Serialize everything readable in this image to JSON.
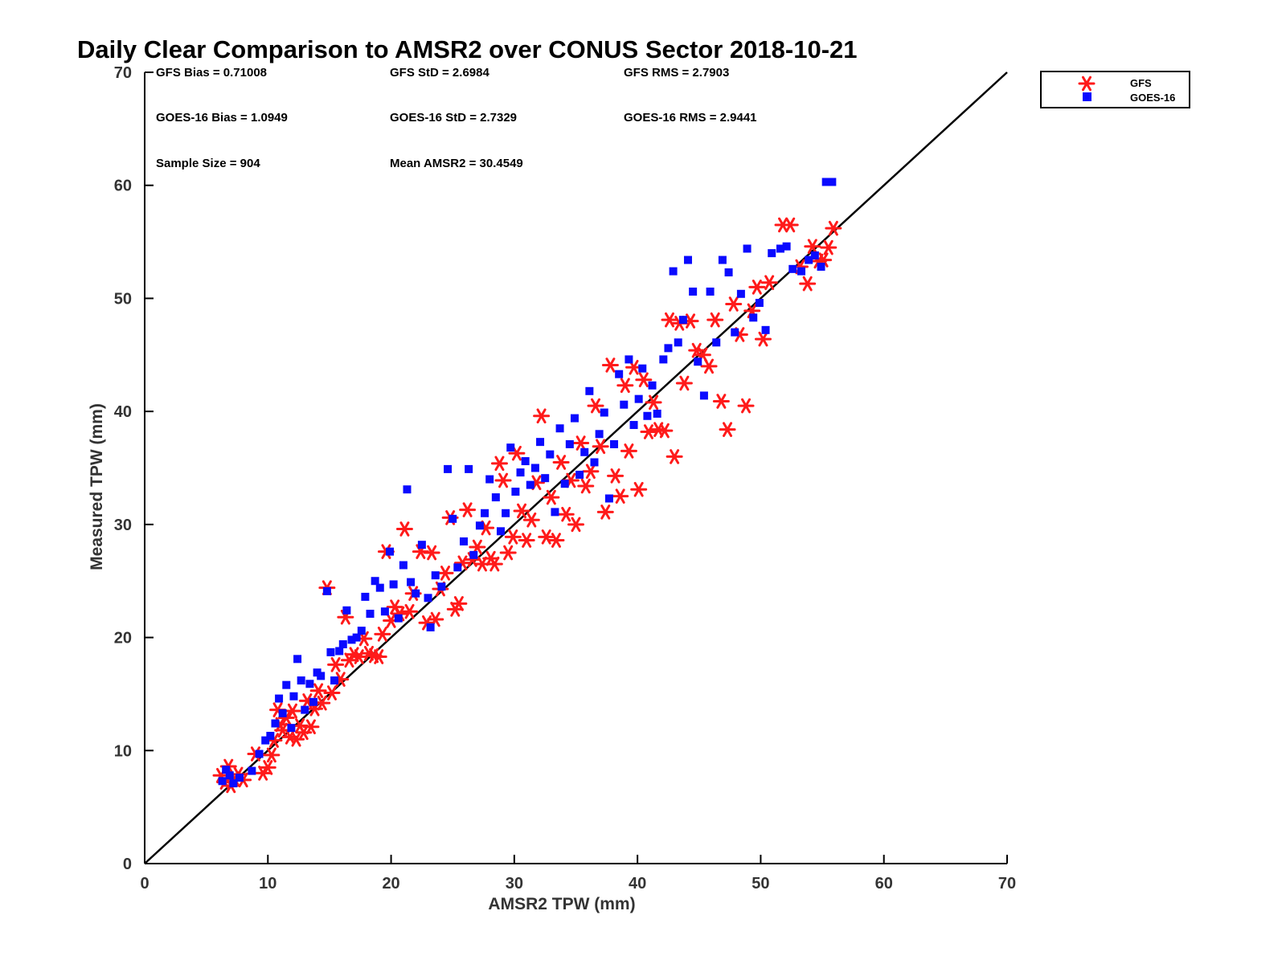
{
  "chart_data": {
    "type": "scatter",
    "title": "Daily Clear Comparison to AMSR2 over CONUS Sector 2018-10-21",
    "xlabel": "AMSR2 TPW (mm)",
    "ylabel": "Measured TPW (mm)",
    "xlim": [
      0,
      70
    ],
    "ylim": [
      0,
      70
    ],
    "xticks": [
      0,
      10,
      20,
      30,
      40,
      50,
      60,
      70
    ],
    "yticks": [
      0,
      10,
      20,
      30,
      40,
      50,
      60,
      70
    ],
    "grid": false,
    "legend_position": "outside top-right",
    "reference_line": {
      "name": "1:1 line",
      "from": [
        0,
        0
      ],
      "to": [
        70,
        70
      ],
      "color": "#000000"
    },
    "stats": [
      [
        "GFS Bias = 0.71008",
        "GFS StD = 2.6984",
        "GFS RMS = 2.7903"
      ],
      [
        "GOES-16 Bias = 1.0949",
        "GOES-16 StD = 2.7329",
        "GOES-16 RMS = 2.9441"
      ],
      [
        "Sample Size = 904",
        "Mean AMSR2 = 30.4549",
        ""
      ]
    ],
    "series": [
      {
        "name": "GFS",
        "marker": "asterisk",
        "color": "#ff1a1a",
        "points": [
          [
            6.2,
            7.8
          ],
          [
            6.5,
            7.2
          ],
          [
            6.8,
            8.6
          ],
          [
            7.0,
            6.9
          ],
          [
            7.3,
            7.5
          ],
          [
            7.6,
            7.9
          ],
          [
            8.0,
            7.4
          ],
          [
            9.0,
            9.7
          ],
          [
            9.6,
            8.0
          ],
          [
            10.0,
            8.5
          ],
          [
            10.3,
            9.6
          ],
          [
            10.5,
            10.9
          ],
          [
            10.8,
            13.6
          ],
          [
            11.0,
            12.3
          ],
          [
            11.2,
            11.8
          ],
          [
            11.5,
            12.9
          ],
          [
            11.8,
            11.2
          ],
          [
            12.0,
            13.5
          ],
          [
            12.3,
            11.0
          ],
          [
            12.6,
            12.2
          ],
          [
            12.9,
            11.6
          ],
          [
            13.2,
            14.4
          ],
          [
            13.5,
            12.1
          ],
          [
            13.8,
            13.7
          ],
          [
            14.1,
            15.3
          ],
          [
            14.4,
            14.2
          ],
          [
            14.8,
            24.4
          ],
          [
            15.2,
            15.1
          ],
          [
            15.5,
            17.6
          ],
          [
            15.9,
            16.3
          ],
          [
            16.3,
            21.8
          ],
          [
            16.6,
            18.0
          ],
          [
            17.0,
            18.5
          ],
          [
            17.4,
            18.3
          ],
          [
            17.8,
            19.9
          ],
          [
            18.2,
            18.6
          ],
          [
            18.6,
            18.4
          ],
          [
            19.0,
            18.3
          ],
          [
            19.3,
            20.3
          ],
          [
            19.6,
            27.6
          ],
          [
            20.0,
            21.5
          ],
          [
            20.3,
            22.7
          ],
          [
            20.7,
            22.1
          ],
          [
            21.1,
            29.6
          ],
          [
            21.5,
            22.3
          ],
          [
            21.8,
            23.9
          ],
          [
            22.4,
            27.6
          ],
          [
            22.9,
            21.3
          ],
          [
            23.3,
            27.5
          ],
          [
            23.6,
            21.6
          ],
          [
            24.0,
            24.3
          ],
          [
            24.4,
            25.7
          ],
          [
            24.8,
            30.6
          ],
          [
            25.2,
            22.5
          ],
          [
            25.5,
            23.0
          ],
          [
            25.8,
            26.6
          ],
          [
            26.2,
            31.3
          ],
          [
            26.6,
            26.9
          ],
          [
            27.0,
            28.0
          ],
          [
            27.4,
            26.5
          ],
          [
            27.7,
            29.7
          ],
          [
            28.1,
            27.0
          ],
          [
            28.4,
            26.5
          ],
          [
            28.8,
            35.4
          ],
          [
            29.1,
            33.9
          ],
          [
            29.5,
            27.5
          ],
          [
            29.9,
            28.9
          ],
          [
            30.2,
            36.3
          ],
          [
            30.6,
            31.2
          ],
          [
            31.0,
            28.6
          ],
          [
            31.4,
            30.4
          ],
          [
            31.8,
            33.7
          ],
          [
            32.2,
            39.6
          ],
          [
            32.6,
            28.9
          ],
          [
            33.0,
            32.4
          ],
          [
            33.4,
            28.6
          ],
          [
            33.8,
            35.5
          ],
          [
            34.2,
            30.9
          ],
          [
            34.6,
            33.9
          ],
          [
            35.0,
            30.0
          ],
          [
            35.4,
            37.2
          ],
          [
            35.8,
            33.4
          ],
          [
            36.2,
            34.7
          ],
          [
            36.6,
            40.5
          ],
          [
            37.0,
            36.9
          ],
          [
            37.4,
            31.1
          ],
          [
            37.8,
            44.1
          ],
          [
            38.2,
            34.3
          ],
          [
            38.6,
            32.5
          ],
          [
            39.0,
            42.3
          ],
          [
            39.3,
            36.5
          ],
          [
            39.7,
            43.9
          ],
          [
            40.1,
            33.1
          ],
          [
            40.5,
            42.8
          ],
          [
            40.9,
            38.2
          ],
          [
            41.3,
            40.8
          ],
          [
            41.7,
            38.4
          ],
          [
            42.2,
            38.3
          ],
          [
            42.6,
            48.1
          ],
          [
            43.0,
            36.0
          ],
          [
            43.4,
            47.8
          ],
          [
            43.8,
            42.5
          ],
          [
            44.3,
            48.0
          ],
          [
            44.8,
            45.4
          ],
          [
            45.3,
            45.0
          ],
          [
            45.8,
            44.0
          ],
          [
            46.3,
            48.1
          ],
          [
            46.8,
            40.9
          ],
          [
            47.3,
            38.4
          ],
          [
            47.8,
            49.5
          ],
          [
            48.3,
            46.8
          ],
          [
            48.8,
            40.5
          ],
          [
            49.3,
            48.9
          ],
          [
            49.7,
            51.0
          ],
          [
            50.2,
            46.4
          ],
          [
            50.7,
            51.4
          ],
          [
            51.8,
            56.5
          ],
          [
            52.4,
            56.5
          ],
          [
            53.2,
            52.8
          ],
          [
            53.8,
            51.3
          ],
          [
            54.2,
            54.6
          ],
          [
            54.7,
            53.3
          ],
          [
            55.1,
            53.4
          ],
          [
            55.5,
            54.5
          ],
          [
            55.9,
            56.2
          ]
        ]
      },
      {
        "name": "GOES-16",
        "marker": "square",
        "color": "#0a0aff",
        "points": [
          [
            6.3,
            7.3
          ],
          [
            6.6,
            8.3
          ],
          [
            6.9,
            7.8
          ],
          [
            7.2,
            7.1
          ],
          [
            7.7,
            7.6
          ],
          [
            8.7,
            8.2
          ],
          [
            9.3,
            9.7
          ],
          [
            9.8,
            10.9
          ],
          [
            10.2,
            11.3
          ],
          [
            10.6,
            12.4
          ],
          [
            10.9,
            14.6
          ],
          [
            11.2,
            13.3
          ],
          [
            11.5,
            15.8
          ],
          [
            11.9,
            12.0
          ],
          [
            12.1,
            14.8
          ],
          [
            12.4,
            18.1
          ],
          [
            12.7,
            16.2
          ],
          [
            13.0,
            13.6
          ],
          [
            13.4,
            15.9
          ],
          [
            13.7,
            14.3
          ],
          [
            14.0,
            16.9
          ],
          [
            14.3,
            16.6
          ],
          [
            14.8,
            24.1
          ],
          [
            15.1,
            18.7
          ],
          [
            15.4,
            16.2
          ],
          [
            15.8,
            18.8
          ],
          [
            16.1,
            19.4
          ],
          [
            16.4,
            22.4
          ],
          [
            16.8,
            19.8
          ],
          [
            17.2,
            20.0
          ],
          [
            17.6,
            20.6
          ],
          [
            17.9,
            23.6
          ],
          [
            18.3,
            22.1
          ],
          [
            18.7,
            25.0
          ],
          [
            19.1,
            24.4
          ],
          [
            19.5,
            22.3
          ],
          [
            19.9,
            27.6
          ],
          [
            20.2,
            24.7
          ],
          [
            20.6,
            21.7
          ],
          [
            21.0,
            26.4
          ],
          [
            21.3,
            33.1
          ],
          [
            21.6,
            24.9
          ],
          [
            22.0,
            23.9
          ],
          [
            22.5,
            28.2
          ],
          [
            23.0,
            23.5
          ],
          [
            23.2,
            20.9
          ],
          [
            23.6,
            25.5
          ],
          [
            24.1,
            24.5
          ],
          [
            24.6,
            34.9
          ],
          [
            25.0,
            30.5
          ],
          [
            25.4,
            26.2
          ],
          [
            25.9,
            28.5
          ],
          [
            26.3,
            34.9
          ],
          [
            26.7,
            27.3
          ],
          [
            27.2,
            29.9
          ],
          [
            27.6,
            31.0
          ],
          [
            28.0,
            34.0
          ],
          [
            28.5,
            32.4
          ],
          [
            28.9,
            29.4
          ],
          [
            29.3,
            31.0
          ],
          [
            29.7,
            36.8
          ],
          [
            30.1,
            32.9
          ],
          [
            30.5,
            34.6
          ],
          [
            30.9,
            35.6
          ],
          [
            31.3,
            33.5
          ],
          [
            31.7,
            35.0
          ],
          [
            32.1,
            37.3
          ],
          [
            32.5,
            34.1
          ],
          [
            32.9,
            36.2
          ],
          [
            33.3,
            31.1
          ],
          [
            33.7,
            38.5
          ],
          [
            34.1,
            33.6
          ],
          [
            34.5,
            37.1
          ],
          [
            34.9,
            39.4
          ],
          [
            35.3,
            34.4
          ],
          [
            35.7,
            36.4
          ],
          [
            36.1,
            41.8
          ],
          [
            36.5,
            35.5
          ],
          [
            36.9,
            38.0
          ],
          [
            37.3,
            39.9
          ],
          [
            37.7,
            32.3
          ],
          [
            38.1,
            37.1
          ],
          [
            38.5,
            43.3
          ],
          [
            38.9,
            40.6
          ],
          [
            39.3,
            44.6
          ],
          [
            39.7,
            38.8
          ],
          [
            40.1,
            41.1
          ],
          [
            40.4,
            43.8
          ],
          [
            40.8,
            39.6
          ],
          [
            41.2,
            42.3
          ],
          [
            41.6,
            39.8
          ],
          [
            42.1,
            44.6
          ],
          [
            42.5,
            45.6
          ],
          [
            42.9,
            52.4
          ],
          [
            43.3,
            46.1
          ],
          [
            43.7,
            48.1
          ],
          [
            44.1,
            53.4
          ],
          [
            44.5,
            50.6
          ],
          [
            44.9,
            44.4
          ],
          [
            45.4,
            41.4
          ],
          [
            45.9,
            50.6
          ],
          [
            46.4,
            46.1
          ],
          [
            46.9,
            53.4
          ],
          [
            47.4,
            52.3
          ],
          [
            47.9,
            47.0
          ],
          [
            48.4,
            50.4
          ],
          [
            48.9,
            54.4
          ],
          [
            49.4,
            48.3
          ],
          [
            49.9,
            49.6
          ],
          [
            50.4,
            47.2
          ],
          [
            50.9,
            54.0
          ],
          [
            51.6,
            54.4
          ],
          [
            52.1,
            54.6
          ],
          [
            52.6,
            52.6
          ],
          [
            53.3,
            52.4
          ],
          [
            53.9,
            53.4
          ],
          [
            54.4,
            53.8
          ],
          [
            54.9,
            52.8
          ],
          [
            55.3,
            60.3
          ],
          [
            55.8,
            60.3
          ]
        ]
      }
    ]
  }
}
